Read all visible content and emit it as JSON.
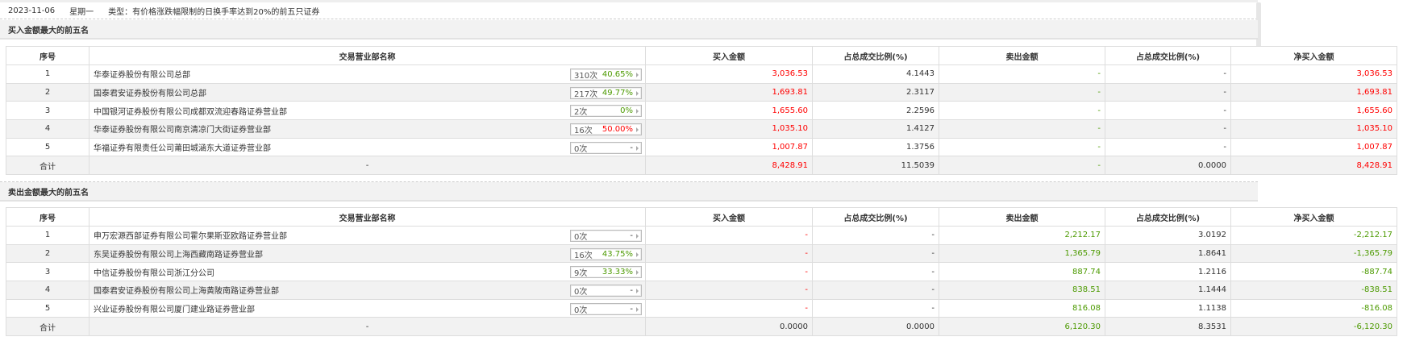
{
  "info": {
    "date": "2023-11-06",
    "weekday": "星期一",
    "type": "类型：有价格涨跌幅限制的日换手率达到20%的前五只证券"
  },
  "colors": {
    "up": "#ff0000",
    "down": "#4c9a00"
  },
  "columns": [
    "序号",
    "交易营业部名称",
    "买入金额",
    "占总成交比例(%)",
    "卖出金额",
    "占总成交比例(%)",
    "净买入金额"
  ],
  "buy": {
    "title": "买入金额最大的前五名",
    "rows": [
      {
        "no": "1",
        "name": "华泰证券股份有限公司总部",
        "count": "310次",
        "rate": "40.65%",
        "rate_color": "grn",
        "buy": "3,036.53",
        "buy_pct": "4.1443",
        "sell": "-",
        "sell_pct": "-",
        "net": "3,036.53"
      },
      {
        "no": "2",
        "name": "国泰君安证券股份有限公司总部",
        "count": "217次",
        "rate": "49.77%",
        "rate_color": "grn",
        "buy": "1,693.81",
        "buy_pct": "2.3117",
        "sell": "-",
        "sell_pct": "-",
        "net": "1,693.81"
      },
      {
        "no": "3",
        "name": "中国银河证券股份有限公司成都双流迎春路证券营业部",
        "count": "2次",
        "rate": "0%",
        "rate_color": "grn",
        "buy": "1,655.60",
        "buy_pct": "2.2596",
        "sell": "-",
        "sell_pct": "-",
        "net": "1,655.60"
      },
      {
        "no": "4",
        "name": "华泰证券股份有限公司南京清凉门大街证券营业部",
        "count": "16次",
        "rate": "50.00%",
        "rate_color": "red",
        "buy": "1,035.10",
        "buy_pct": "1.4127",
        "sell": "-",
        "sell_pct": "-",
        "net": "1,035.10"
      },
      {
        "no": "5",
        "name": "华福证券有限责任公司莆田城涵东大道证券营业部",
        "count": "0次",
        "rate": "-",
        "rate_color": "",
        "buy": "1,007.87",
        "buy_pct": "1.3756",
        "sell": "-",
        "sell_pct": "-",
        "net": "1,007.87"
      }
    ],
    "total": {
      "label": "合计",
      "name": "-",
      "buy": "8,428.91",
      "buy_pct": "11.5039",
      "sell": "-",
      "sell_pct": "0.0000",
      "net": "8,428.91"
    }
  },
  "sell": {
    "title": "卖出金额最大的前五名",
    "rows": [
      {
        "no": "1",
        "name": "申万宏源西部证券有限公司霍尔果斯亚欧路证券营业部",
        "count": "0次",
        "rate": "-",
        "rate_color": "",
        "buy": "-",
        "buy_pct": "-",
        "sell": "2,212.17",
        "sell_pct": "3.0192",
        "net": "-2,212.17"
      },
      {
        "no": "2",
        "name": "东吴证券股份有限公司上海西藏南路证券营业部",
        "count": "16次",
        "rate": "43.75%",
        "rate_color": "grn",
        "buy": "-",
        "buy_pct": "-",
        "sell": "1,365.79",
        "sell_pct": "1.8641",
        "net": "-1,365.79"
      },
      {
        "no": "3",
        "name": "中信证券股份有限公司浙江分公司",
        "count": "9次",
        "rate": "33.33%",
        "rate_color": "grn",
        "buy": "-",
        "buy_pct": "-",
        "sell": "887.74",
        "sell_pct": "1.2116",
        "net": "-887.74"
      },
      {
        "no": "4",
        "name": "国泰君安证券股份有限公司上海黄陂南路证券营业部",
        "count": "0次",
        "rate": "-",
        "rate_color": "",
        "buy": "-",
        "buy_pct": "-",
        "sell": "838.51",
        "sell_pct": "1.1444",
        "net": "-838.51"
      },
      {
        "no": "5",
        "name": "兴业证券股份有限公司厦门建业路证券营业部",
        "count": "0次",
        "rate": "-",
        "rate_color": "",
        "buy": "-",
        "buy_pct": "-",
        "sell": "816.08",
        "sell_pct": "1.1138",
        "net": "-816.08"
      }
    ],
    "total": {
      "label": "合计",
      "name": "-",
      "buy": "0.0000",
      "buy_pct": "0.0000",
      "sell": "6,120.30",
      "sell_pct": "8.3531",
      "net": "-6,120.30"
    }
  }
}
